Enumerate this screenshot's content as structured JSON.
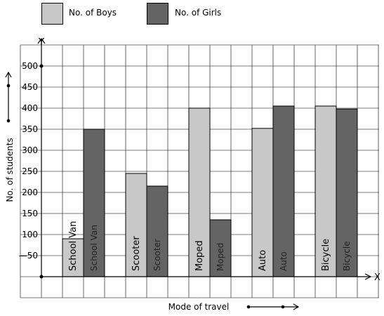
{
  "chart_data": {
    "type": "bar",
    "categories": [
      "School Van",
      "Scooter",
      "Moped",
      "Auto",
      "Bicycle"
    ],
    "series": [
      {
        "name": "No. of Boys",
        "color": "#c8c8c8",
        "values": [
          90,
          245,
          400,
          352,
          405
        ]
      },
      {
        "name": "No. of Girls",
        "color": "#646464",
        "values": [
          350,
          215,
          135,
          405,
          398
        ]
      }
    ],
    "y_ticks": [
      "50",
      "100",
      "150",
      "200",
      "250",
      "300",
      "350",
      "400",
      "450",
      "500"
    ],
    "ylim": [
      0,
      550
    ],
    "xlabel": "Mode of travel",
    "ylabel": "No. of students",
    "x_axis_letter": "X",
    "y_axis_letter": "Y",
    "grid": true,
    "legend_position": "top-left"
  }
}
